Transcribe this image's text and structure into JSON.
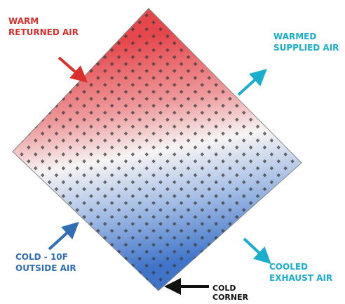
{
  "labels": [
    {
      "lines": [
        "WARM",
        "RETURNED AIR"
      ]
    },
    {
      "lines": [
        "WARMED",
        "SUPPLIED AIR"
      ]
    },
    {
      "lines": [
        "COLD - 10F",
        "OUTSIDE AIR"
      ]
    },
    {
      "lines": [
        "COOLED",
        "EXHAUST AIR"
      ]
    },
    {
      "lines": [
        "COLD",
        "CORNER"
      ]
    }
  ]
}
